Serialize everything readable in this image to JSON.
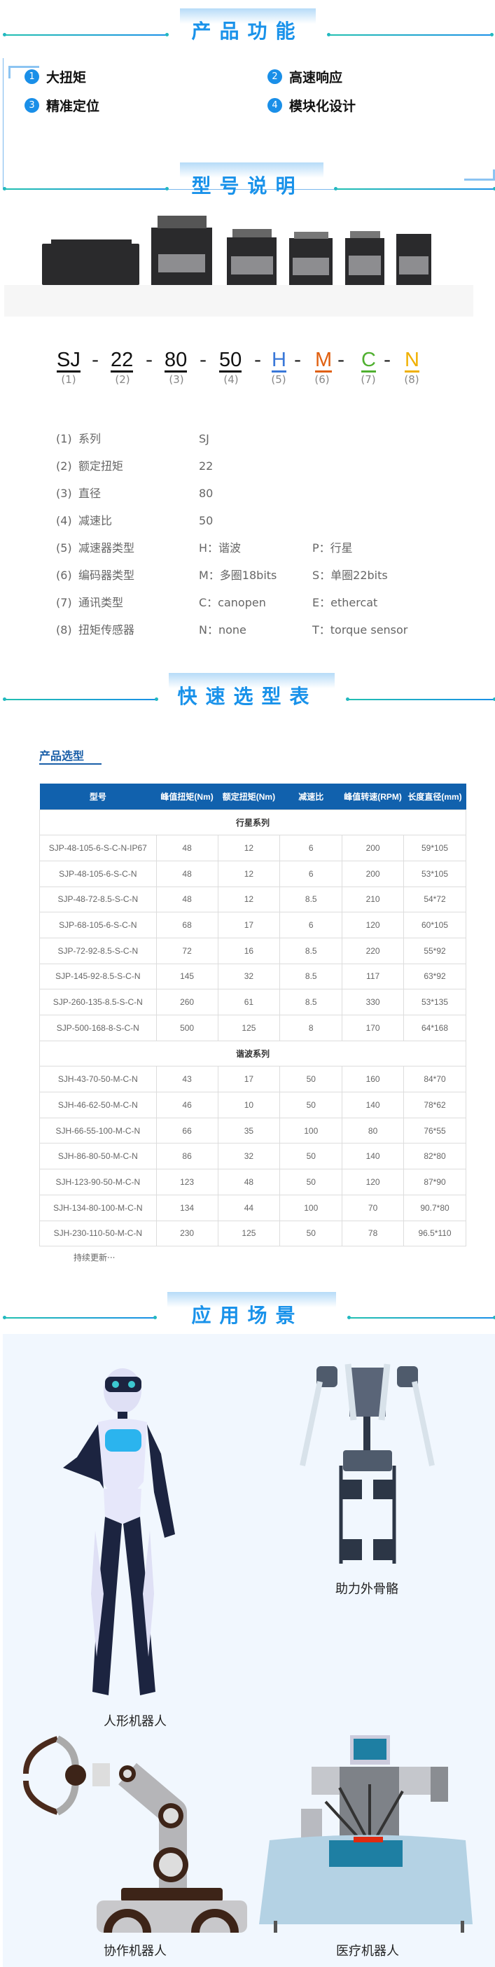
{
  "sections": {
    "features_title": "产品功能",
    "model_title": "型号说明",
    "selection_title": "快速选型表",
    "applications_title": "应用场景"
  },
  "features": [
    {
      "num": "1",
      "label": "大扭矩"
    },
    {
      "num": "2",
      "label": "高速响应"
    },
    {
      "num": "3",
      "label": "精准定位"
    },
    {
      "num": "4",
      "label": "模块化设计"
    }
  ],
  "model_code": {
    "segments": [
      {
        "text": "SJ",
        "label": "(1)",
        "color": "#111111"
      },
      {
        "text": "22",
        "label": "(2)",
        "color": "#111111"
      },
      {
        "text": "80",
        "label": "(3)",
        "color": "#111111"
      },
      {
        "text": "50",
        "label": "(4)",
        "color": "#111111"
      },
      {
        "text": "H",
        "label": "(5)",
        "color": "#3a78d8"
      },
      {
        "text": "M",
        "label": "(6)",
        "color": "#e06010"
      },
      {
        "text": "C",
        "label": "(7)",
        "color": "#50b030"
      },
      {
        "text": "N",
        "label": "(8)",
        "color": "#f0b000"
      }
    ],
    "separator": "-"
  },
  "spec_list": [
    {
      "index": "(1)",
      "name": "系列",
      "opt1": "SJ",
      "opt2": ""
    },
    {
      "index": "(2)",
      "name": "额定扭矩",
      "opt1": "22",
      "opt2": ""
    },
    {
      "index": "(3)",
      "name": "直径",
      "opt1": "80",
      "opt2": ""
    },
    {
      "index": "(4)",
      "name": "减速比",
      "opt1": "50",
      "opt2": ""
    },
    {
      "index": "(5)",
      "name": "减速器类型",
      "opt1": "H：谐波",
      "opt2": "P：行星"
    },
    {
      "index": "(6)",
      "name": "编码器类型",
      "opt1": "M：多圈18bits",
      "opt2": "S：单圈22bits"
    },
    {
      "index": "(7)",
      "name": "通讯类型",
      "opt1": "C：canopen",
      "opt2": "E：ethercat"
    },
    {
      "index": "(8)",
      "name": "扭矩传感器",
      "opt1": "N：none",
      "opt2": "T：torque sensor"
    }
  ],
  "selection": {
    "subtitle": "产品选型",
    "headers": [
      "型号",
      "峰值扭矩(Nm)",
      "额定扭矩(Nm)",
      "减速比",
      "峰值转速(RPM)",
      "长度直径(mm)"
    ],
    "groups": [
      {
        "name": "行星系列",
        "rows": [
          [
            "SJP-48-105-6-S-C-N-IP67",
            "48",
            "12",
            "6",
            "200",
            "59*105"
          ],
          [
            "SJP-48-105-6-S-C-N",
            "48",
            "12",
            "6",
            "200",
            "53*105"
          ],
          [
            "SJP-48-72-8.5-S-C-N",
            "48",
            "12",
            "8.5",
            "210",
            "54*72"
          ],
          [
            "SJP-68-105-6-S-C-N",
            "68",
            "17",
            "6",
            "120",
            "60*105"
          ],
          [
            "SJP-72-92-8.5-S-C-N",
            "72",
            "16",
            "8.5",
            "220",
            "55*92"
          ],
          [
            "SJP-145-92-8.5-S-C-N",
            "145",
            "32",
            "8.5",
            "117",
            "63*92"
          ],
          [
            "SJP-260-135-8.5-S-C-N",
            "260",
            "61",
            "8.5",
            "330",
            "53*135"
          ],
          [
            "SJP-500-168-8-S-C-N",
            "500",
            "125",
            "8",
            "170",
            "64*168"
          ]
        ]
      },
      {
        "name": "谐波系列",
        "rows": [
          [
            "SJH-43-70-50-M-C-N",
            "43",
            "17",
            "50",
            "160",
            "84*70"
          ],
          [
            "SJH-46-62-50-M-C-N",
            "46",
            "10",
            "50",
            "140",
            "78*62"
          ],
          [
            "SJH-66-55-100-M-C-N",
            "66",
            "35",
            "100",
            "80",
            "76*55"
          ],
          [
            "SJH-86-80-50-M-C-N",
            "86",
            "32",
            "50",
            "140",
            "82*80"
          ],
          [
            "SJH-123-90-50-M-C-N",
            "123",
            "48",
            "50",
            "120",
            "87*90"
          ],
          [
            "SJH-134-80-100-M-C-N",
            "134",
            "44",
            "100",
            "70",
            "90.7*80"
          ],
          [
            "SJH-230-110-50-M-C-N",
            "230",
            "125",
            "50",
            "78",
            "96.5*110"
          ]
        ]
      }
    ],
    "footnote": "持续更新···"
  },
  "applications": [
    {
      "label": "人形机器人",
      "icon": "humanoid-robot"
    },
    {
      "label": "助力外骨骼",
      "icon": "exoskeleton"
    },
    {
      "label": "协作机器人",
      "icon": "robot-arm"
    },
    {
      "label": "医疗机器人",
      "icon": "surgical-robot"
    }
  ],
  "colors": {
    "accent": "#1a8fe8",
    "table_header": "#1161ad",
    "panel_bg": "#f1f7fe"
  }
}
